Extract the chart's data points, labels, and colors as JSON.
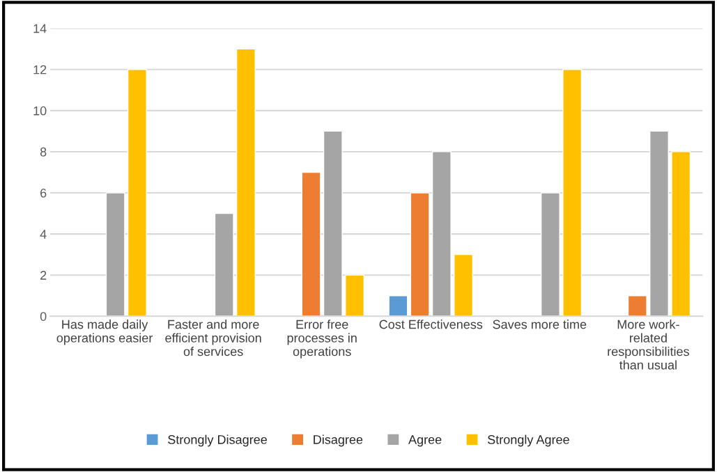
{
  "chart_data": {
    "type": "bar",
    "categories": [
      "Has made daily\noperations easier",
      "Faster and more\nefficient provision\nof services",
      "Error free\nprocesses in\noperations",
      "Cost Effectiveness",
      "Saves more time",
      "More work-\nrelated\nresponsibilities\nthan usual"
    ],
    "series": [
      {
        "name": "Strongly Disagree",
        "color": "#5b9bd5",
        "values": [
          null,
          null,
          null,
          1,
          null,
          null
        ]
      },
      {
        "name": "Disagree",
        "color": "#ed7d31",
        "values": [
          null,
          null,
          7,
          6,
          null,
          1
        ]
      },
      {
        "name": "Agree",
        "color": "#a5a5a5",
        "values": [
          6,
          5,
          9,
          8,
          6,
          9
        ]
      },
      {
        "name": "Strongly Agree",
        "color": "#ffc000",
        "values": [
          12,
          13,
          2,
          3,
          12,
          8
        ]
      }
    ],
    "ylim": [
      0,
      14
    ],
    "yticks": [
      0,
      2,
      4,
      6,
      8,
      10,
      12,
      14
    ],
    "grid": "y",
    "legend": "bottom"
  }
}
